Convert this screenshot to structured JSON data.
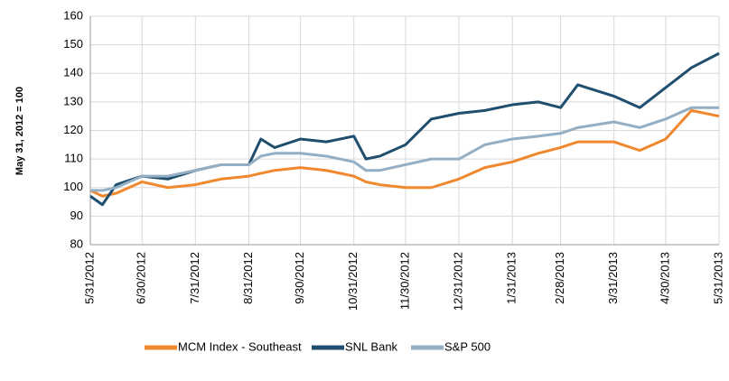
{
  "chart_data": {
    "type": "line",
    "ylabel": "May 31, 2012 = 100",
    "x": [
      "5/31/2012",
      "6/7/2012",
      "6/15/2012",
      "6/30/2012",
      "7/15/2012",
      "7/31/2012",
      "8/15/2012",
      "8/31/2012",
      "9/7/2012",
      "9/15/2012",
      "9/30/2012",
      "10/15/2012",
      "10/31/2012",
      "11/7/2012",
      "11/15/2012",
      "11/30/2012",
      "12/15/2012",
      "12/31/2012",
      "1/15/2013",
      "1/31/2013",
      "2/15/2013",
      "2/28/2013",
      "3/10/2013",
      "3/31/2013",
      "4/15/2013",
      "4/30/2013",
      "5/15/2013",
      "5/31/2013"
    ],
    "series": [
      {
        "name": "MCM Index - Southeast",
        "color": "#f0882e",
        "values": [
          99,
          97,
          98,
          102,
          100,
          101,
          103,
          104,
          105,
          106,
          107,
          106,
          104,
          102,
          101,
          100,
          100,
          103,
          107,
          109,
          112,
          114,
          116,
          116,
          113,
          117,
          127,
          125
        ]
      },
      {
        "name": "SNL Bank",
        "color": "#1f4e6e",
        "values": [
          97,
          94,
          101,
          104,
          103,
          106,
          108,
          108,
          117,
          114,
          117,
          116,
          118,
          110,
          111,
          115,
          124,
          126,
          127,
          129,
          130,
          128,
          136,
          132,
          128,
          135,
          142,
          147
        ]
      },
      {
        "name": "S&P 500",
        "color": "#94aec4",
        "values": [
          99,
          99,
          100,
          104,
          104,
          106,
          108,
          108,
          111,
          112,
          112,
          111,
          109,
          106,
          106,
          108,
          110,
          110,
          115,
          117,
          118,
          119,
          121,
          123,
          121,
          124,
          128,
          128
        ]
      }
    ],
    "xticks": [
      "5/31/2012",
      "6/30/2012",
      "7/31/2012",
      "8/31/2012",
      "9/30/2012",
      "10/31/2012",
      "11/30/2012",
      "12/31/2012",
      "1/31/2013",
      "2/28/2013",
      "3/31/2013",
      "4/30/2013",
      "5/31/2013"
    ],
    "ylim": [
      80,
      160
    ],
    "yticks": [
      80,
      90,
      100,
      110,
      120,
      130,
      140,
      150,
      160
    ],
    "grid": true,
    "legend": "bottom"
  }
}
